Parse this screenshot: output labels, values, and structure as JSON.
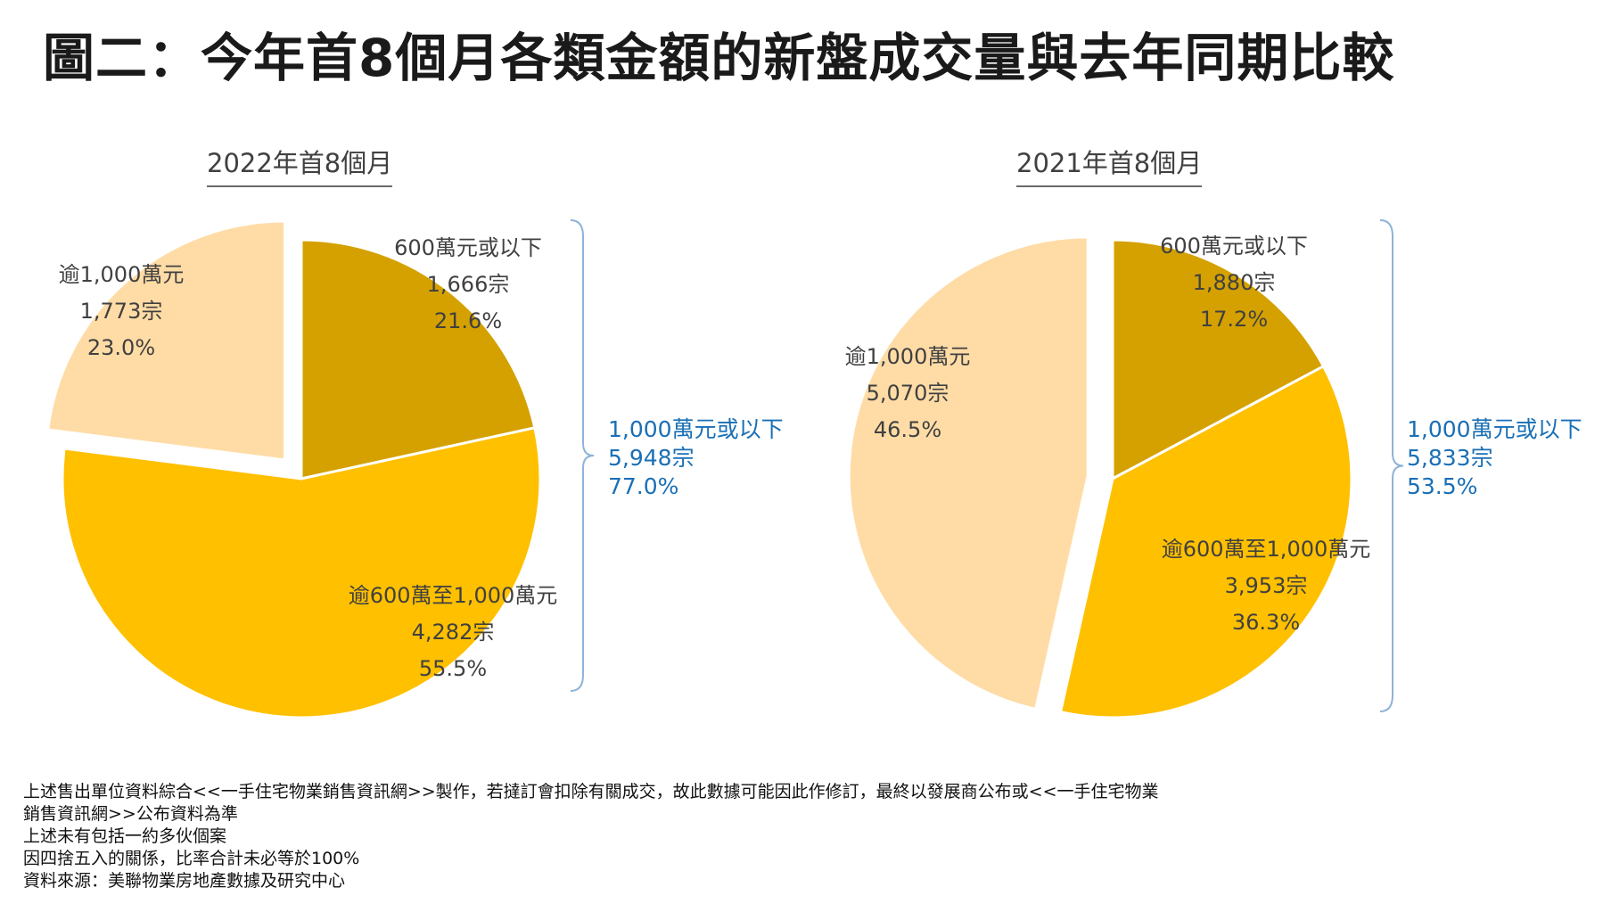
{
  "title": "圖二：今年首8個月各類金額的新盤成交量與去年同期比較",
  "chart_data": [
    {
      "type": "pie",
      "subtitle": "2022年首8個月",
      "slices": [
        {
          "label": "600萬元或以下",
          "count": "1,666宗",
          "value": 21.6,
          "pct": "21.6%",
          "color": "#D4A100"
        },
        {
          "label": "逾600萬至1,000萬元",
          "count": "4,282宗",
          "value": 55.5,
          "pct": "55.5%",
          "color": "#FFC000"
        },
        {
          "label": "逾1,000萬元",
          "count": "1,773宗",
          "value": 23.0,
          "pct": "23.0%",
          "color": "#FFDCA6"
        }
      ],
      "summary": {
        "label": "1,000萬元或以下",
        "count": "5,948宗",
        "pct": "77.0%",
        "color": "#1A6FB5"
      }
    },
    {
      "type": "pie",
      "subtitle": "2021年首8個月",
      "slices": [
        {
          "label": "600萬元或以下",
          "count": "1,880宗",
          "value": 17.2,
          "pct": "17.2%",
          "color": "#D4A100"
        },
        {
          "label": "逾600萬至1,000萬元",
          "count": "3,953宗",
          "value": 36.3,
          "pct": "36.3%",
          "color": "#FFC000"
        },
        {
          "label": "逾1,000萬元",
          "count": "5,070宗",
          "value": 46.5,
          "pct": "46.5%",
          "color": "#FFDCA6"
        }
      ],
      "summary": {
        "label": "1,000萬元或以下",
        "count": "5,833宗",
        "pct": "53.5%",
        "color": "#1A6FB5"
      }
    }
  ],
  "notes": [
    "上述售出單位資料綜合<<一手住宅物業銷售資訊網>>製作，若撻訂會扣除有關成交，故此數據可能因此作修訂，最終以發展商公布或<<一手住宅物業",
    "銷售資訊網>>公布資料為準",
    "上述未有包括一約多伙個案",
    "因四捨五入的關係，比率合計未必等於100%",
    "資料來源：美聯物業房地產數據及研究中心"
  ]
}
